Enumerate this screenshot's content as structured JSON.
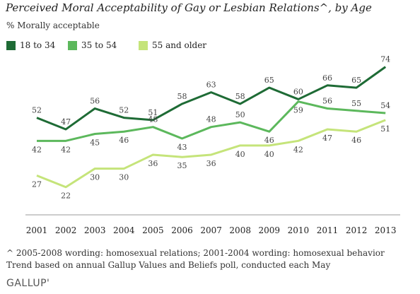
{
  "title": "Perceived Moral Acceptability of Gay or Lesbian Relations^, by Age",
  "subtitle": "% Morally acceptable",
  "footnotes": [
    "^ 2005-2008 wording: homosexual relations; 2001-2004 wording: homosexual behavior",
    "Trend based on annual Gallup Values and Beliefs poll, conducted each May"
  ],
  "logo": "GALLUP'",
  "chart_data": {
    "type": "line",
    "x": [
      "2001",
      "2002",
      "2003",
      "2004",
      "2005",
      "2006",
      "2007",
      "2008",
      "2009",
      "2010",
      "2011",
      "2012",
      "2013"
    ],
    "ylim": [
      10,
      80
    ],
    "grid": false,
    "legend_position": "top-left",
    "series": [
      {
        "name": "18 to 34",
        "color": "#1e6b35",
        "values": [
          52,
          47,
          56,
          52,
          51,
          58,
          63,
          58,
          65,
          60,
          66,
          65,
          74
        ]
      },
      {
        "name": "35 to 54",
        "color": "#5cb85c",
        "values": [
          42,
          42,
          45,
          46,
          48,
          43,
          48,
          50,
          46,
          59,
          56,
          55,
          54
        ]
      },
      {
        "name": "55 and older",
        "color": "#c5e47a",
        "values": [
          27,
          22,
          30,
          30,
          36,
          35,
          36,
          40,
          40,
          42,
          47,
          46,
          51
        ]
      }
    ]
  }
}
